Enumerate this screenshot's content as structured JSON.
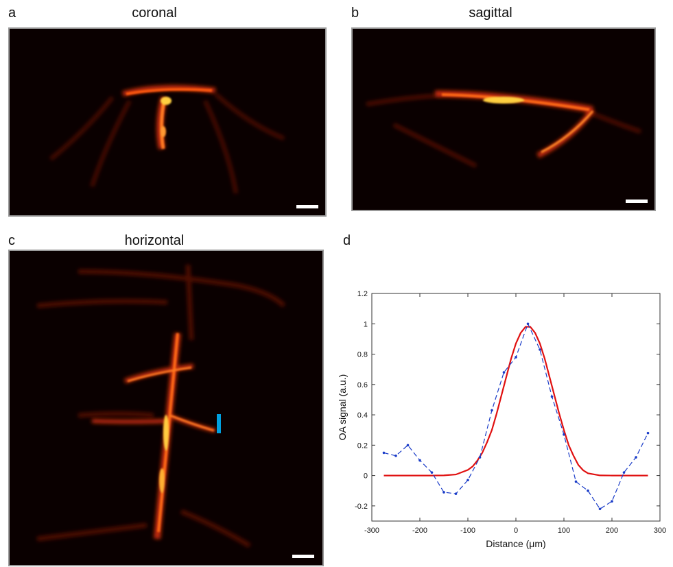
{
  "panels": {
    "a": {
      "letter": "a",
      "title": "coronal"
    },
    "b": {
      "letter": "b",
      "title": "sagittal"
    },
    "c": {
      "letter": "c",
      "title": "horizontal"
    },
    "d": {
      "letter": "d",
      "title": ""
    }
  },
  "colors": {
    "fit_line": "#e01010",
    "measured_line": "#1a3cc8",
    "profile_marker": "#00a0e0",
    "image_background": "#0a0000"
  },
  "chart_data": {
    "type": "line",
    "title": "",
    "xlabel": "Distance (μm)",
    "ylabel": "OA signal (a.u.)",
    "xlim": [
      -300,
      300
    ],
    "ylim": [
      -0.3,
      1.2
    ],
    "x_ticks": [
      -300,
      -200,
      -100,
      0,
      100,
      200,
      300
    ],
    "y_ticks": [
      -0.2,
      0,
      0.2,
      0.4,
      0.6,
      0.8,
      1,
      1.2
    ],
    "x_tick_labels": [
      "-300",
      "-200",
      "-100",
      "0",
      "100",
      "200",
      "300"
    ],
    "y_tick_labels": [
      "-0.2",
      "0",
      "0.2",
      "0.4",
      "0.6",
      "0.8",
      "1",
      "1.2"
    ],
    "grid": false,
    "series": [
      {
        "style": "dashed-with-markers",
        "x": [
          -275,
          -250,
          -225,
          -200,
          -175,
          -150,
          -125,
          -100,
          -75,
          -50,
          -25,
          0,
          25,
          50,
          75,
          100,
          125,
          150,
          175,
          200,
          225,
          250,
          275
        ],
        "y": [
          0.15,
          0.13,
          0.2,
          0.1,
          0.02,
          -0.11,
          -0.12,
          -0.03,
          0.12,
          0.43,
          0.68,
          0.78,
          1.0,
          0.83,
          0.52,
          0.27,
          -0.04,
          -0.1,
          -0.22,
          -0.17,
          0.02,
          0.12,
          0.28
        ]
      },
      {
        "style": "solid-fit",
        "x": [
          -275,
          -250,
          -225,
          -200,
          -175,
          -150,
          -125,
          -100,
          -90,
          -80,
          -70,
          -60,
          -50,
          -40,
          -30,
          -20,
          -10,
          0,
          10,
          20,
          30,
          40,
          50,
          60,
          70,
          80,
          90,
          100,
          110,
          120,
          130,
          140,
          150,
          175,
          200,
          225,
          250,
          275
        ],
        "y": [
          0,
          0,
          0,
          0,
          0,
          0.001,
          0.007,
          0.037,
          0.06,
          0.1,
          0.15,
          0.22,
          0.3,
          0.41,
          0.53,
          0.65,
          0.77,
          0.87,
          0.94,
          0.98,
          0.98,
          0.94,
          0.87,
          0.77,
          0.65,
          0.53,
          0.41,
          0.3,
          0.2,
          0.13,
          0.07,
          0.035,
          0.015,
          0.001,
          0,
          0,
          0,
          0
        ]
      }
    ]
  }
}
